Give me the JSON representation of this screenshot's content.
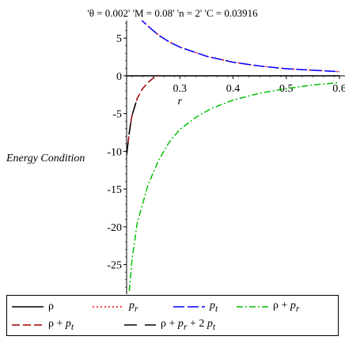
{
  "chart_data": {
    "type": "line",
    "title": "'θ = 0.002' 'M = 0.08' 'n = 2' 'C = 0.03916",
    "xlabel": "r",
    "ylabel": "Energy Condition",
    "xlim": [
      0.2,
      0.6
    ],
    "ylim": [
      -28.5,
      9
    ],
    "x_ticks": [
      "0.3",
      "0.4",
      "0.5",
      "0.6"
    ],
    "y_ticks": [
      "5",
      "0",
      "-5",
      "-10",
      "-15",
      "-20",
      "-25"
    ],
    "series": [
      {
        "name": "ρ",
        "color": "#000000",
        "dash": "solid",
        "x": [
          0.2,
          0.25,
          0.3,
          0.35,
          0.4,
          0.45,
          0.5,
          0.55,
          0.6
        ],
        "y": [
          0.0,
          0.0,
          0.0,
          0.0,
          0.0,
          0.0,
          0.0,
          0.0,
          0.0
        ]
      },
      {
        "name": "p_r",
        "color": "#ff0000",
        "dash": "dot",
        "x": [
          0.2,
          0.205,
          0.21,
          0.22,
          0.24,
          0.26,
          0.28,
          0.3,
          0.35,
          0.4,
          0.45,
          0.5,
          0.55,
          0.6
        ],
        "y": [
          8.3,
          8.6,
          8.5,
          7.9,
          6.6,
          5.4,
          4.5,
          3.8,
          2.6,
          1.8,
          1.3,
          0.95,
          0.75,
          0.55
        ]
      },
      {
        "name": "p_t",
        "color": "#0000ff",
        "dash": "long-dash",
        "x": [
          0.2,
          0.205,
          0.21,
          0.22,
          0.24,
          0.26,
          0.28,
          0.3,
          0.35,
          0.4,
          0.45,
          0.5,
          0.55,
          0.6
        ],
        "y": [
          8.3,
          8.6,
          8.5,
          7.9,
          6.6,
          5.4,
          4.5,
          3.8,
          2.6,
          1.8,
          1.3,
          0.95,
          0.75,
          0.55
        ]
      },
      {
        "name": "ρ + p_r",
        "color": "#00c000",
        "dash": "dash-dot",
        "x": [
          0.205,
          0.21,
          0.22,
          0.24,
          0.26,
          0.28,
          0.3,
          0.33,
          0.36,
          0.4,
          0.45,
          0.5,
          0.55,
          0.6
        ],
        "y": [
          -28.5,
          -24.5,
          -19.5,
          -14.5,
          -11.2,
          -8.8,
          -7.1,
          -5.5,
          -4.3,
          -3.2,
          -2.3,
          -1.7,
          -1.2,
          -0.9
        ]
      },
      {
        "name": "ρ + p_t",
        "color": "#a00000",
        "dash": "dash",
        "x": [
          0.2,
          0.205,
          0.21,
          0.22,
          0.23,
          0.24,
          0.25,
          0.26
        ],
        "y": [
          -10.5,
          -7.5,
          -5.3,
          -3.0,
          -1.7,
          -0.9,
          -0.3,
          0.1
        ]
      },
      {
        "name": "ρ + p_r + 2 p_t",
        "color": "#000000",
        "dash": "dash-space",
        "x": [
          0.2,
          0.205,
          0.21,
          0.22
        ],
        "y": [
          -10.5,
          -7.5,
          -5.3,
          -3.0
        ]
      }
    ]
  },
  "legend": {
    "rho": "ρ",
    "pr_base": "p",
    "pr_sub": "r",
    "pt_base": "p",
    "pt_sub": "t",
    "rho_pr_a": "ρ + ",
    "rho_pr_b": "p",
    "rho_pr_sub": "r",
    "rho_pt_a": "ρ + ",
    "rho_pt_b": "p",
    "rho_pt_sub": "t",
    "full_a": "ρ + ",
    "full_b": "p",
    "full_sub1": "r",
    "full_c": " + 2 ",
    "full_d": "p",
    "full_sub2": "t"
  }
}
